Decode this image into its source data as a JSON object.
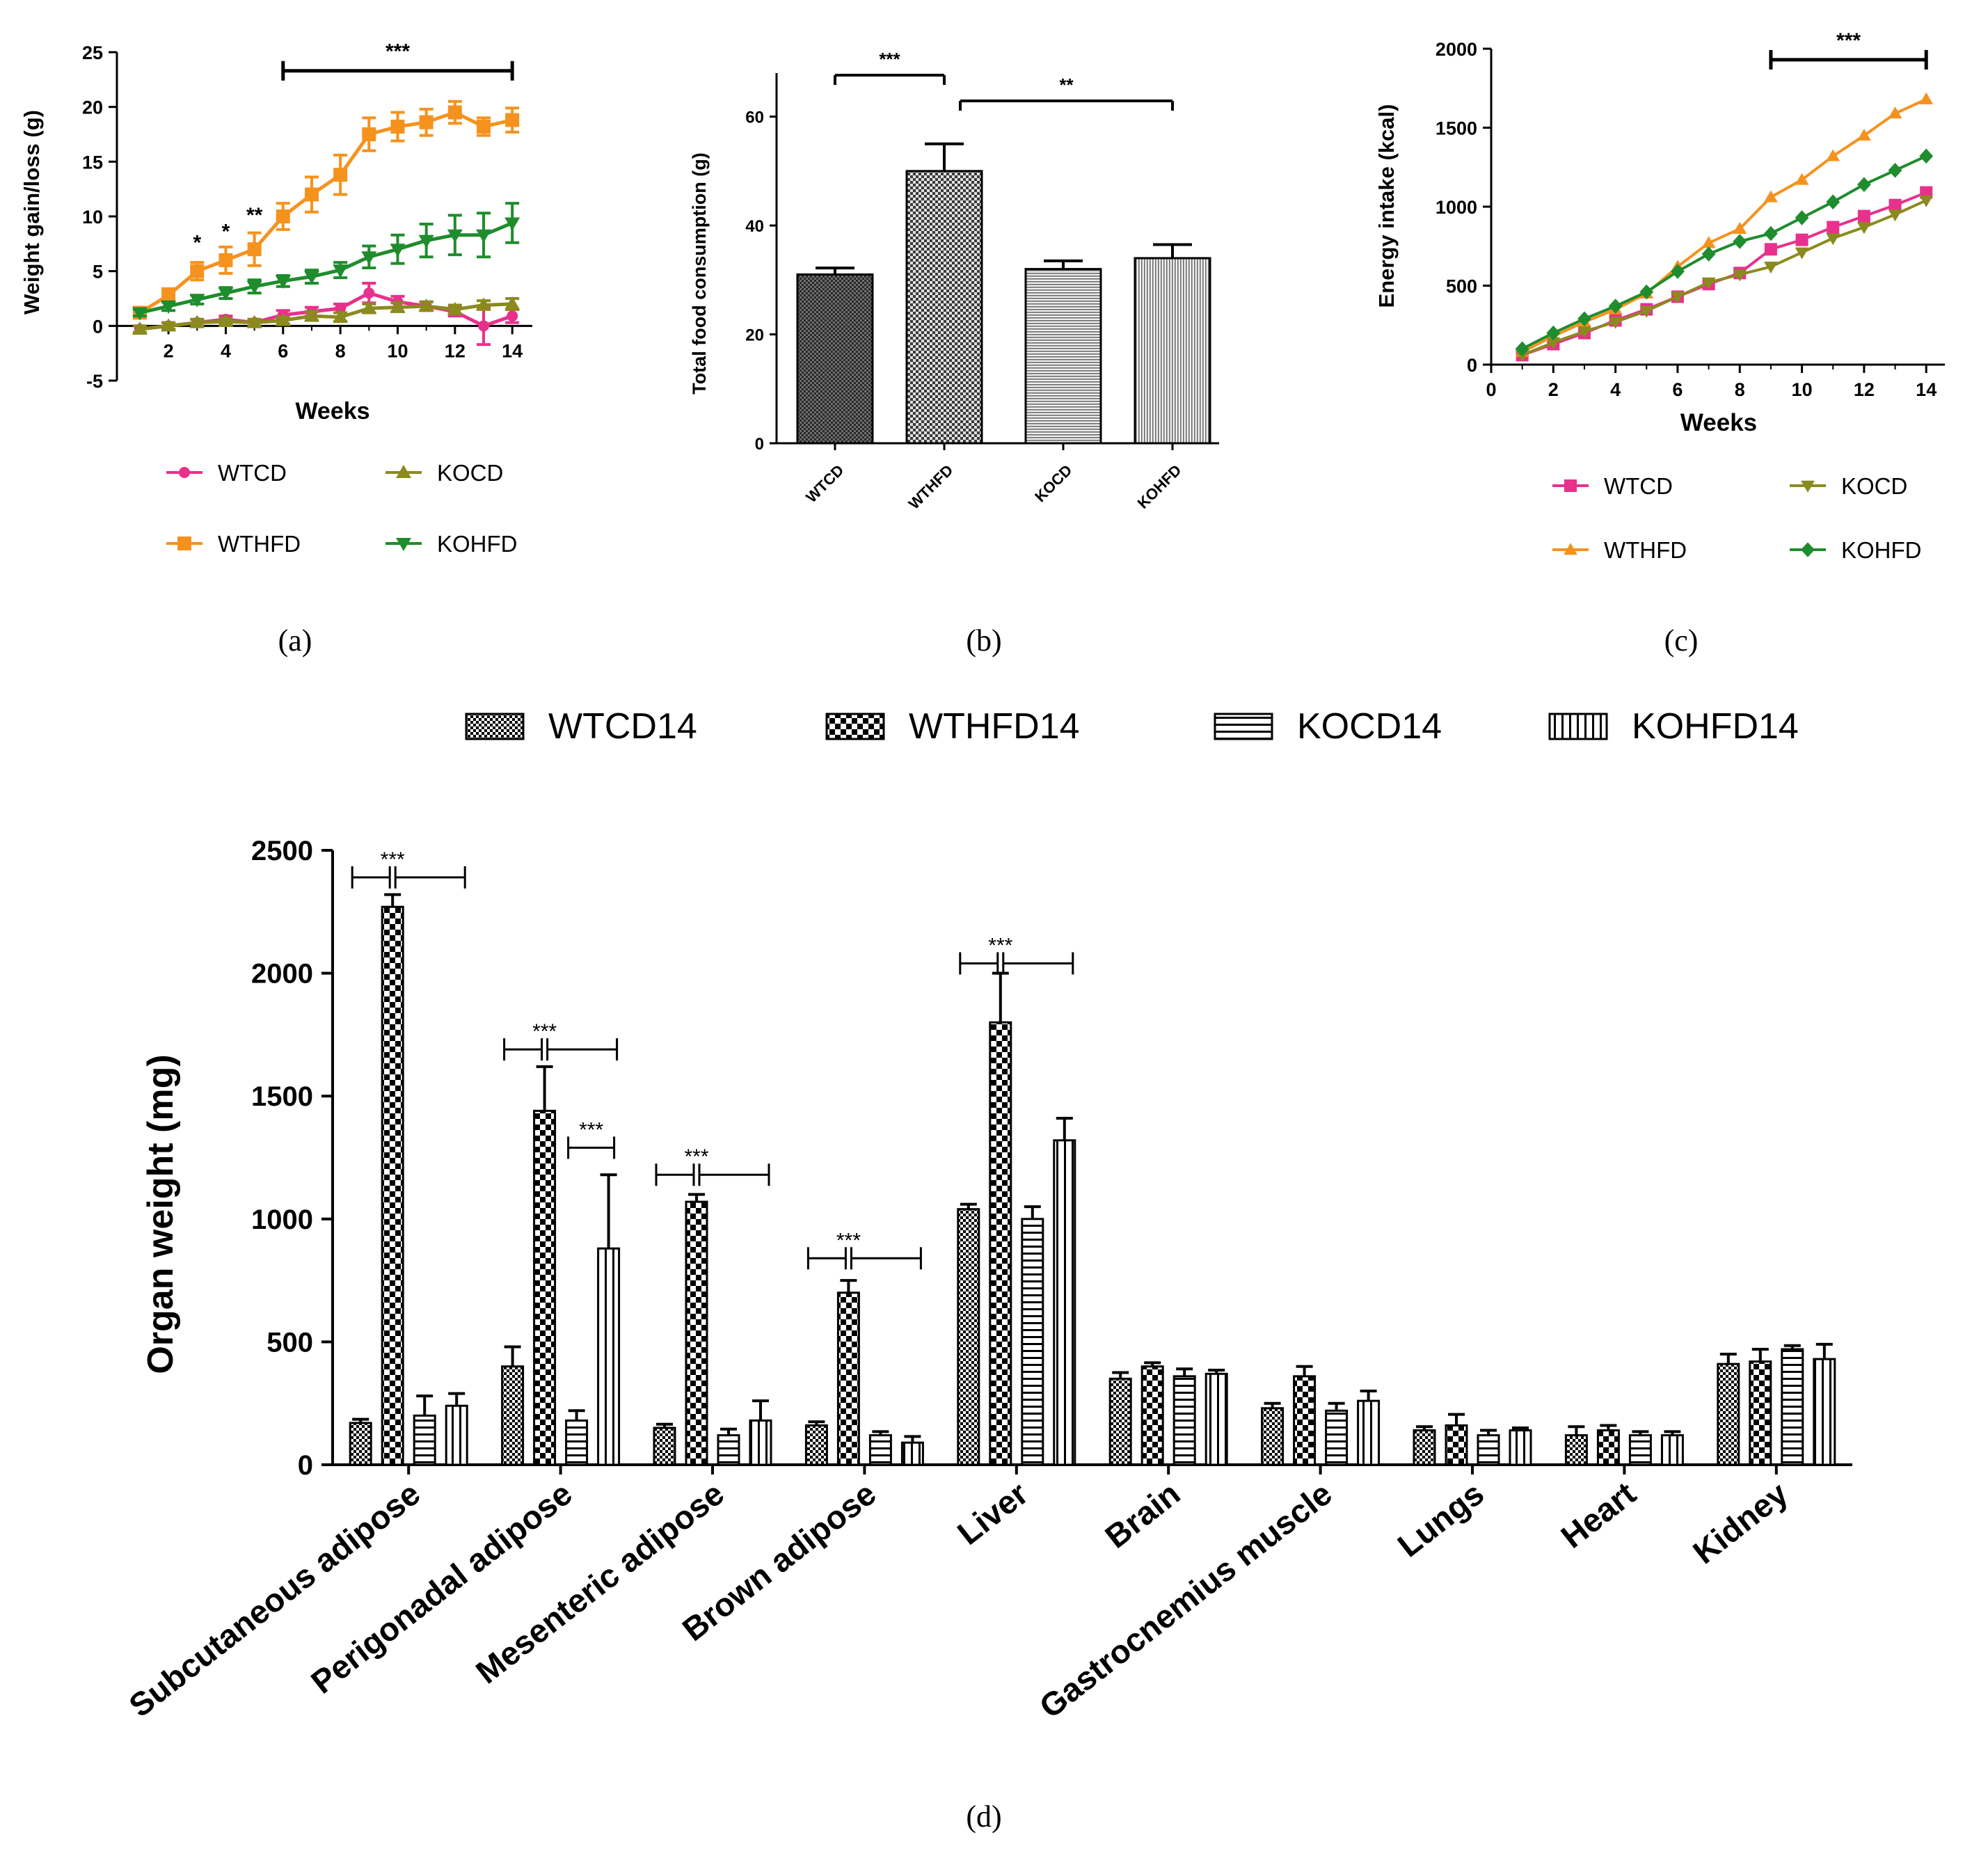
{
  "panel_labels": [
    "(a)",
    "(b)",
    "(c)",
    "(d)"
  ],
  "colors": {
    "WTCD": "#e8318c",
    "WTHFD": "#f5921e",
    "KOCD": "#8b8a1f",
    "KOHFD": "#1f8c2d",
    "axis": "#000000"
  },
  "chart_data": [
    {
      "panel": "a",
      "type": "line",
      "title": "",
      "xlabel": "Weeks",
      "ylabel": "Weight gain/loss (g)",
      "xlim": [
        0.2,
        14.7
      ],
      "ylim": [
        -5,
        25
      ],
      "xticks": [
        2,
        4,
        6,
        8,
        10,
        12,
        14
      ],
      "yticks": [
        -5,
        0,
        5,
        10,
        15,
        20,
        25
      ],
      "x": [
        1,
        2,
        3,
        4,
        5,
        6,
        7,
        8,
        9,
        10,
        11,
        12,
        13,
        14
      ],
      "series": [
        {
          "name": "WTCD",
          "marker": "circle",
          "values": [
            -0.3,
            0.0,
            0.3,
            0.6,
            0.3,
            1.0,
            1.3,
            1.6,
            3.0,
            2.2,
            1.8,
            1.3,
            0.0,
            0.9
          ],
          "errors": [
            0.3,
            0.3,
            0.3,
            0.3,
            0.3,
            0.4,
            0.4,
            0.4,
            0.9,
            0.5,
            0.4,
            0.4,
            1.7,
            0.6
          ]
        },
        {
          "name": "WTHFD",
          "marker": "square",
          "values": [
            1.2,
            2.8,
            5.0,
            6.0,
            7.0,
            10.0,
            12.0,
            13.8,
            17.5,
            18.2,
            18.6,
            19.5,
            18.2,
            18.8
          ],
          "errors": [
            0.4,
            0.6,
            0.8,
            1.2,
            1.5,
            1.2,
            1.6,
            1.8,
            1.5,
            1.3,
            1.2,
            1.0,
            0.8,
            1.1
          ]
        },
        {
          "name": "KOCD",
          "marker": "triangle-up",
          "values": [
            -0.3,
            0.0,
            0.3,
            0.4,
            0.3,
            0.5,
            0.9,
            0.8,
            1.6,
            1.7,
            1.8,
            1.5,
            1.9,
            2.0
          ],
          "errors": [
            0.3,
            0.3,
            0.3,
            0.3,
            0.3,
            0.3,
            0.4,
            0.4,
            0.4,
            0.4,
            0.4,
            0.4,
            0.4,
            0.5
          ]
        },
        {
          "name": "KOHFD",
          "marker": "triangle-down",
          "values": [
            1.2,
            1.8,
            2.4,
            3.0,
            3.6,
            4.1,
            4.5,
            5.1,
            6.3,
            7.0,
            7.8,
            8.3,
            8.3,
            9.4
          ],
          "errors": [
            0.3,
            0.4,
            0.4,
            0.5,
            0.6,
            0.5,
            0.6,
            0.7,
            1.0,
            1.3,
            1.5,
            1.8,
            2.0,
            1.8
          ]
        }
      ],
      "annotations": [
        {
          "text": "*",
          "x": 3,
          "y": 7.5
        },
        {
          "text": "*",
          "x": 4,
          "y": 8.5
        },
        {
          "text": "**",
          "x": 5,
          "y": 10.0
        },
        {
          "text": "***",
          "bracket_from": 6,
          "bracket_to": 14,
          "y": 23.3
        }
      ],
      "legend": "bottom",
      "grid": false
    },
    {
      "panel": "b",
      "type": "bar",
      "title": "",
      "xlabel": "",
      "ylabel": "Total food consumption (g)",
      "categories": [
        "WTCD",
        "WTHFD",
        "KOCD",
        "KOHFD"
      ],
      "values": [
        31,
        50,
        32,
        34
      ],
      "errors": [
        1.2,
        5.0,
        1.5,
        2.5
      ],
      "ylim": [
        0,
        68
      ],
      "yticks": [
        0,
        20,
        40,
        60
      ],
      "annotations": [
        {
          "text": "***",
          "from": "WTCD",
          "to": "WTHFD"
        },
        {
          "text": "**",
          "from": "WTHFD",
          "to": "KOHFD"
        }
      ],
      "grid": false
    },
    {
      "panel": "c",
      "type": "line",
      "title": "",
      "xlabel": "Weeks",
      "ylabel": "Energy intake (kcal)",
      "xlim": [
        0,
        14.6
      ],
      "ylim": [
        0,
        2000
      ],
      "xticks": [
        0,
        2,
        4,
        6,
        8,
        10,
        12,
        14
      ],
      "yticks": [
        0,
        500,
        1000,
        1500,
        2000
      ],
      "x": [
        1,
        2,
        3,
        4,
        5,
        6,
        7,
        8,
        9,
        10,
        11,
        12,
        13,
        14
      ],
      "series": [
        {
          "name": "WTCD",
          "marker": "square",
          "values": [
            60,
            130,
            200,
            280,
            350,
            430,
            510,
            580,
            730,
            790,
            870,
            940,
            1010,
            1090
          ]
        },
        {
          "name": "WTHFD",
          "marker": "triangle-up",
          "values": [
            80,
            180,
            270,
            350,
            450,
            620,
            770,
            860,
            1060,
            1170,
            1320,
            1450,
            1590,
            1680
          ]
        },
        {
          "name": "KOCD",
          "marker": "triangle-down",
          "values": [
            60,
            140,
            210,
            270,
            340,
            430,
            520,
            570,
            620,
            710,
            800,
            870,
            950,
            1040
          ]
        },
        {
          "name": "KOHFD",
          "marker": "diamond",
          "values": [
            100,
            200,
            290,
            370,
            460,
            590,
            700,
            780,
            830,
            930,
            1030,
            1140,
            1230,
            1320
          ]
        }
      ],
      "annotations": [
        {
          "text": "***",
          "bracket_from": 9,
          "bracket_to": 14,
          "y": 1930
        }
      ],
      "legend": "bottom",
      "grid": false
    },
    {
      "panel": "d",
      "type": "bar",
      "title": "",
      "xlabel": "",
      "ylabel": "Organ weight (mg)",
      "categories": [
        "Subcutaneous adipose",
        "Perigonadal adipose",
        "Mesenteric adipose",
        "Brown adipose",
        "Liver",
        "Brain",
        "Gastrocnemius muscle",
        "Lungs",
        "Heart",
        "Kidney"
      ],
      "ylim": [
        0,
        2500
      ],
      "yticks": [
        0,
        500,
        1000,
        1500,
        2000,
        2500
      ],
      "series": [
        {
          "name": "WTCD14",
          "pattern": "fine-check",
          "values": [
            170,
            400,
            150,
            160,
            1040,
            350,
            230,
            140,
            120,
            410
          ],
          "errors": [
            15,
            80,
            15,
            15,
            20,
            25,
            20,
            15,
            35,
            40
          ]
        },
        {
          "name": "WTHFD14",
          "pattern": "coarse-check",
          "values": [
            2270,
            1440,
            1070,
            700,
            1800,
            400,
            360,
            160,
            140,
            420
          ],
          "errors": [
            50,
            180,
            30,
            50,
            200,
            15,
            40,
            45,
            20,
            50
          ]
        },
        {
          "name": "KOCD14",
          "pattern": "horizontal-stripes",
          "values": [
            200,
            180,
            120,
            120,
            1000,
            360,
            220,
            120,
            120,
            470
          ],
          "errors": [
            80,
            40,
            25,
            15,
            50,
            30,
            30,
            20,
            15,
            15
          ]
        },
        {
          "name": "KOHFD14",
          "pattern": "vertical-stripes",
          "values": [
            240,
            880,
            180,
            90,
            1320,
            370,
            260,
            140,
            120,
            430
          ],
          "errors": [
            50,
            300,
            80,
            25,
            90,
            15,
            40,
            10,
            15,
            60
          ]
        }
      ],
      "annotations": [
        {
          "text": "***",
          "category": 0,
          "y": 2390
        },
        {
          "text": "***",
          "category": 1,
          "y": 1690
        },
        {
          "text": "***",
          "category": 1,
          "y": 1290,
          "short": true
        },
        {
          "text": "***",
          "category": 2,
          "y": 1180
        },
        {
          "text": "***",
          "category": 3,
          "y": 840
        },
        {
          "text": "***",
          "category": 4,
          "y": 2040
        }
      ],
      "legend": "top",
      "grid": false
    }
  ]
}
